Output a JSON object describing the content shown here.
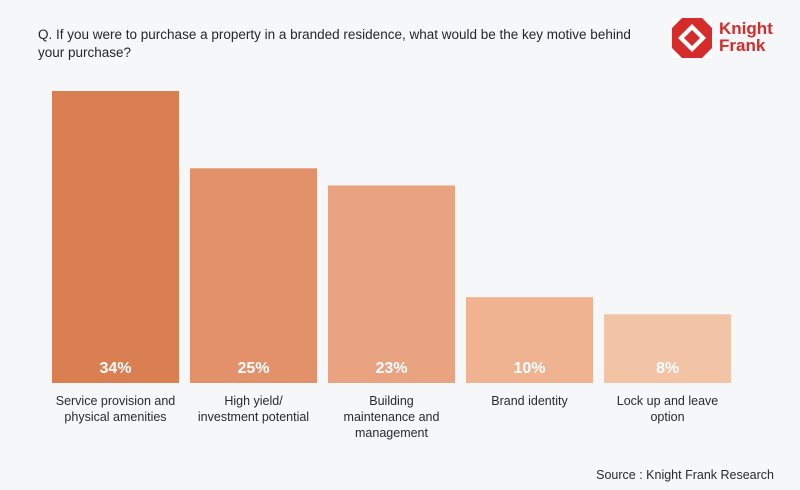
{
  "question": "Q. If you were to purchase a property in a branded residence, what would be the key motive behind your purchase?",
  "logo": {
    "line1": "Knight",
    "line2": "Frank",
    "color": "#d52b2b"
  },
  "source": "Source : Knight Frank Research",
  "chart_data": {
    "type": "bar",
    "categories": [
      [
        "Service provision and",
        "physical amenities"
      ],
      [
        "High yield/",
        "investment potential"
      ],
      [
        "Building",
        "maintenance and",
        "management"
      ],
      [
        "Brand identity"
      ],
      [
        "Lock up and leave",
        "option"
      ]
    ],
    "values": [
      34,
      25,
      23,
      10,
      8
    ],
    "value_labels": [
      "34%",
      "25%",
      "23%",
      "10%",
      "8%"
    ],
    "colors": [
      "#d97f52",
      "#e2916b",
      "#e9a381",
      "#efb392",
      "#f3c3a6"
    ],
    "unit": "%",
    "ylim": [
      0,
      34
    ],
    "grid": false,
    "legend": "none"
  }
}
